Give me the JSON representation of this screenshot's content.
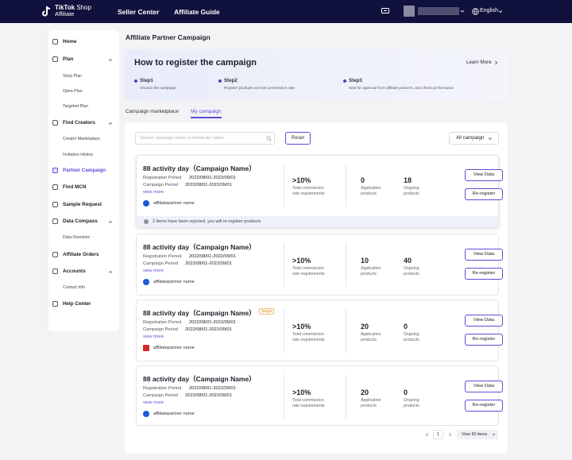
{
  "topbar": {
    "logo_line1_bold": "TikTok",
    "logo_line1_rest": " Shop",
    "logo_line2": "Affiliate",
    "nav": [
      "Seller Center",
      "Affiliate Guide"
    ],
    "language": "English"
  },
  "sidebar": {
    "items": [
      {
        "label": "Home"
      },
      {
        "label": "Plan"
      },
      {
        "label": "Find Creators"
      },
      {
        "label": "Partner Campaign",
        "active": true
      },
      {
        "label": "Find MCN"
      },
      {
        "label": "Sample Request"
      },
      {
        "label": "Data Compass"
      },
      {
        "label": "Affiliate Orders"
      },
      {
        "label": "Accounts"
      },
      {
        "label": "Help Center"
      }
    ],
    "subitems": [
      "Shop Plan",
      "Open Plan",
      "Targeted Plan",
      "Creator Marketplace",
      "Invitation History",
      "Data Overview",
      "Contact Info"
    ]
  },
  "main": {
    "title": "Affiliate Partner Campaign",
    "register": {
      "title": "How to register the campaign",
      "learn_more": "Learn More",
      "steps": [
        {
          "name": "Step1",
          "desc": "Choose the campaign"
        },
        {
          "name": "Step2",
          "desc": "Register products and set commission rate"
        },
        {
          "name": "Step3",
          "desc": "Wait for approval from affiliate partners, and check performance"
        }
      ]
    },
    "tabs": [
      "Campaign marketplace",
      "My campaign"
    ],
    "active_tab": "My campaign",
    "search_placeholder": "Search campaign name or distributor name",
    "reset_label": "Reset",
    "filter_label": "All campaign",
    "labels": {
      "registration": "Registration Period",
      "campaign": "Campaign Period",
      "view_more": "view more",
      "commission": [
        "Total commission",
        "rate requirements"
      ],
      "application": [
        "Application",
        "products"
      ],
      "ongoing": [
        "Ongoing",
        "products"
      ],
      "view_data": "View Data",
      "reregister": "Re-register"
    },
    "campaigns": [
      {
        "name": "88 activity day（Campaign Name）",
        "badge": "",
        "registration": "2022/08/01-2022/09/01",
        "campaign": "2022/08/01-2022/09/01",
        "partner": "affiliatepartner name",
        "commission": ">10%",
        "application": "0",
        "ongoing": "18",
        "notice": "2 items have been rejected, you will re-register products"
      },
      {
        "name": "88 activity day（Campaign Name）",
        "badge": "",
        "registration": "2022/08/01-2022/09/01",
        "campaign": "2022/08/01-2022/09/01",
        "partner": "affiliatepartner name",
        "commission": ">10%",
        "application": "10",
        "ongoing": "40",
        "notice": ""
      },
      {
        "name": "88 activity day（Campaign Name）",
        "badge": "Target",
        "registration": "2022/08/01-2022/09/01",
        "campaign": "2022/08/01-2022/09/01",
        "partner": "affiliatepartner name",
        "commission": ">10%",
        "application": "20",
        "ongoing": "0",
        "notice": ""
      },
      {
        "name": "88 activity day（Campaign Name）",
        "badge": "",
        "registration": "2022/08/01-2022/09/01",
        "campaign": "2022/08/01-2022/09/01",
        "partner": "affiliatepartner name",
        "commission": ">10%",
        "application": "20",
        "ongoing": "0",
        "notice": ""
      }
    ],
    "pagination": {
      "page": "1",
      "page_size": "View 50 items"
    }
  },
  "colors": {
    "topbar": "#11113d",
    "accent": "#5b4fd6"
  }
}
